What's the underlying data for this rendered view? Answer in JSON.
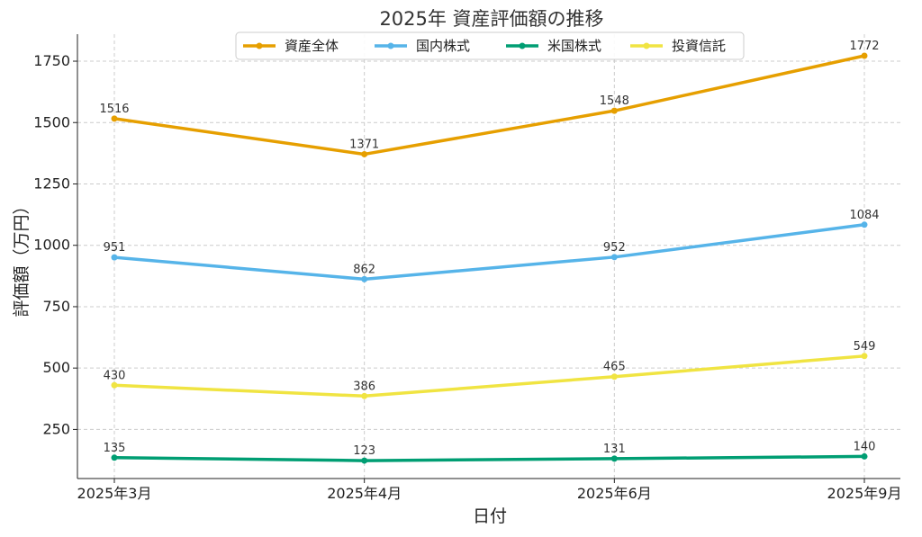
{
  "chart_data": {
    "type": "line",
    "title": "2025年 資産評価額の推移",
    "xlabel": "日付",
    "ylabel": "評価額（万円）",
    "categories": [
      "2025年3月",
      "2025年4月",
      "2025年6月",
      "2025年9月"
    ],
    "x": [
      0,
      1,
      2,
      3
    ],
    "ylim": [
      50,
      1860
    ],
    "yticks": [
      250,
      500,
      750,
      1000,
      1250,
      1500,
      1750
    ],
    "grid": true,
    "legend_position": "top-center",
    "series": [
      {
        "name": "資産全体",
        "color": "#E69F00",
        "values": [
          1516,
          1371,
          1548,
          1772
        ]
      },
      {
        "name": "国内株式",
        "color": "#56B4E9",
        "values": [
          951,
          862,
          952,
          1084
        ]
      },
      {
        "name": "米国株式",
        "color": "#009E73",
        "values": [
          135,
          123,
          131,
          140
        ]
      },
      {
        "name": "投資信託",
        "color": "#F0E442",
        "values": [
          430,
          386,
          465,
          549
        ]
      }
    ]
  }
}
